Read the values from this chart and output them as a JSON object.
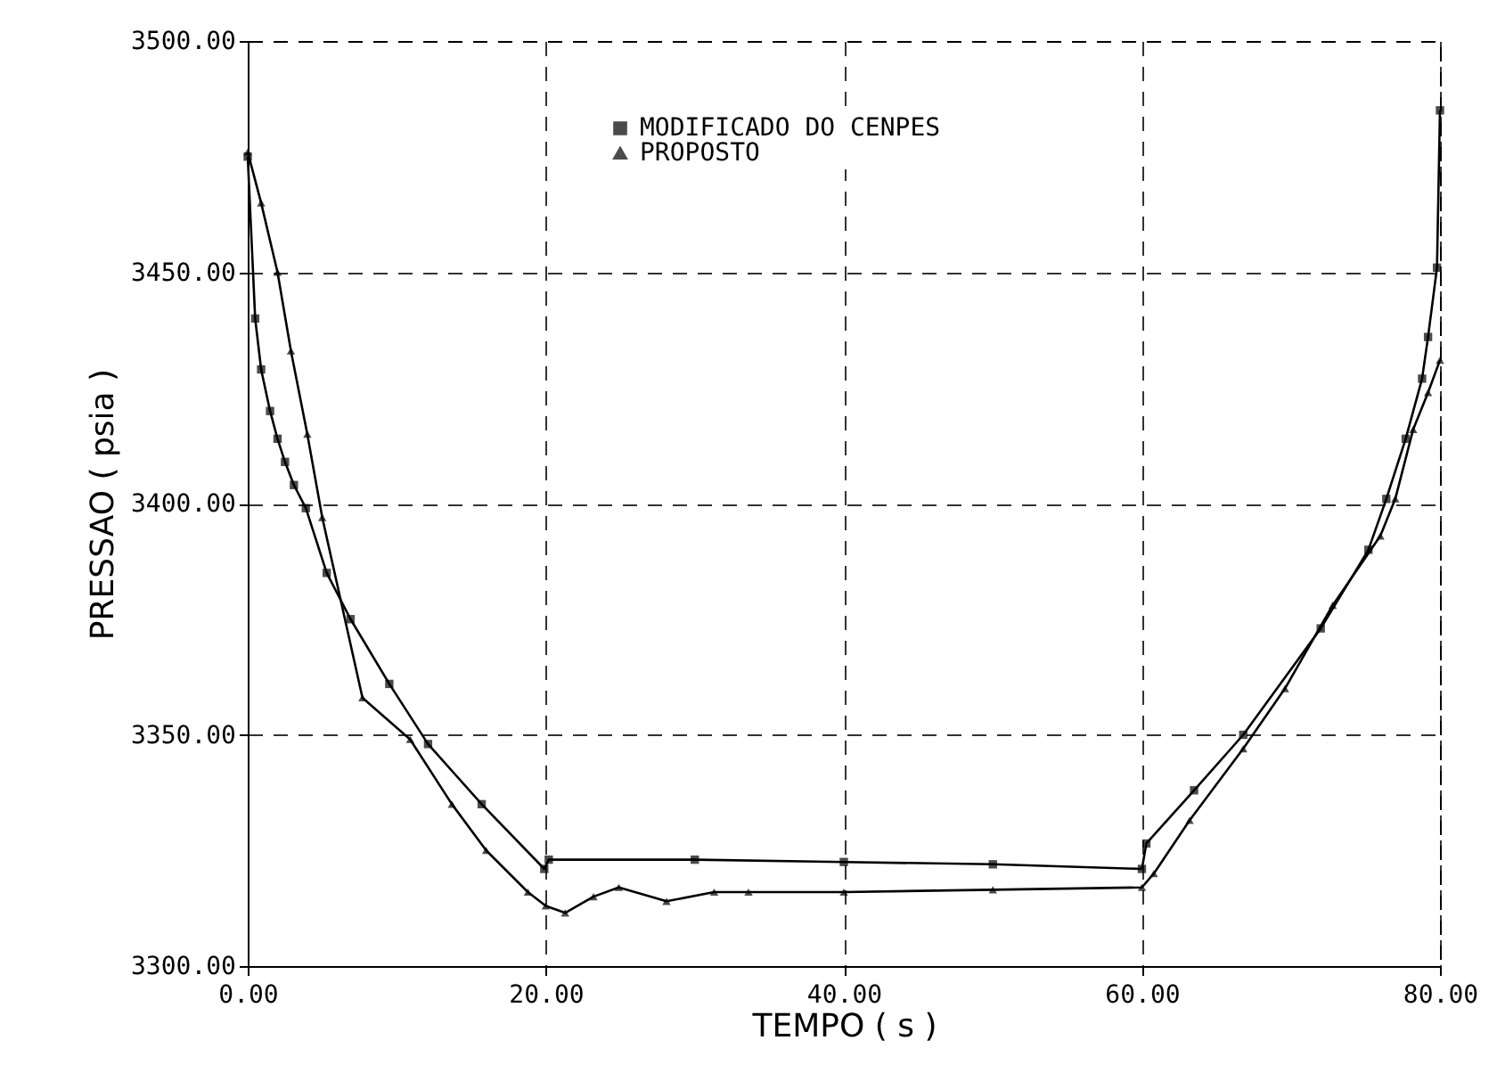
{
  "chart_data": {
    "type": "line",
    "xlabel": "TEMPO ( s )",
    "ylabel": "PRESSAO ( psia )",
    "series": [
      {
        "name": "MODIFICADO DO CENPES",
        "color": "#000000",
        "marker": "square",
        "x": [
          0,
          0.5,
          0.9,
          1.5,
          2.0,
          2.5,
          3.1,
          3.9,
          5.3,
          6.9,
          9.5,
          12.1,
          15.7,
          19.9,
          20.2,
          30,
          40,
          50,
          60,
          60.3,
          63.5,
          66.8,
          72,
          75.2,
          76.4,
          77.7,
          78.8,
          79.2,
          79.8,
          80
        ],
        "values": [
          3475,
          3440,
          3429,
          3420,
          3414,
          3409,
          3404,
          3399,
          3385,
          3375,
          3361,
          3348,
          3335,
          3321,
          3323,
          3323,
          3322.5,
          3322,
          3321,
          3326.5,
          3338,
          3350,
          3373,
          3390,
          3401,
          3414,
          3427,
          3436,
          3451,
          3485
        ]
      },
      {
        "name": "PROPOSTO",
        "color": "#000000",
        "marker": "triangle",
        "x": [
          0,
          0.9,
          2.0,
          2.9,
          4.0,
          5.0,
          7.7,
          10.9,
          13.7,
          16,
          18.8,
          20,
          21.3,
          23.2,
          24.9,
          28.1,
          31.3,
          33.6,
          40,
          50,
          60,
          60.8,
          63.2,
          66.8,
          69.6,
          72.8,
          76,
          77,
          78.2,
          79.2,
          80
        ],
        "values": [
          3476,
          3465,
          3450,
          3433,
          3415,
          3397,
          3358,
          3349,
          3335,
          3325,
          3316,
          3313,
          3311.5,
          3315,
          3317,
          3314,
          3316,
          3316,
          3316,
          3316.5,
          3317,
          3320,
          3331.5,
          3347,
          3360,
          3378,
          3393,
          3401,
          3416,
          3424,
          3431
        ]
      }
    ],
    "xlim": [
      0,
      80
    ],
    "xticks": [
      {
        "value": 0,
        "label": "0.00"
      },
      {
        "value": 20,
        "label": "20.00"
      },
      {
        "value": 40,
        "label": "40.00"
      },
      {
        "value": 60,
        "label": "60.00"
      },
      {
        "value": 80,
        "label": "80.00"
      }
    ],
    "ylim": [
      3300,
      3500
    ],
    "yticks": [
      {
        "value": 3300,
        "label": "3300.00"
      },
      {
        "value": 3350,
        "label": "3350.00"
      },
      {
        "value": 3400,
        "label": "3400.00"
      },
      {
        "value": 3450,
        "label": "3450.00"
      },
      {
        "value": 3500,
        "label": "3500.00"
      }
    ],
    "grid": true,
    "legend": "top",
    "line_style": "solid"
  }
}
